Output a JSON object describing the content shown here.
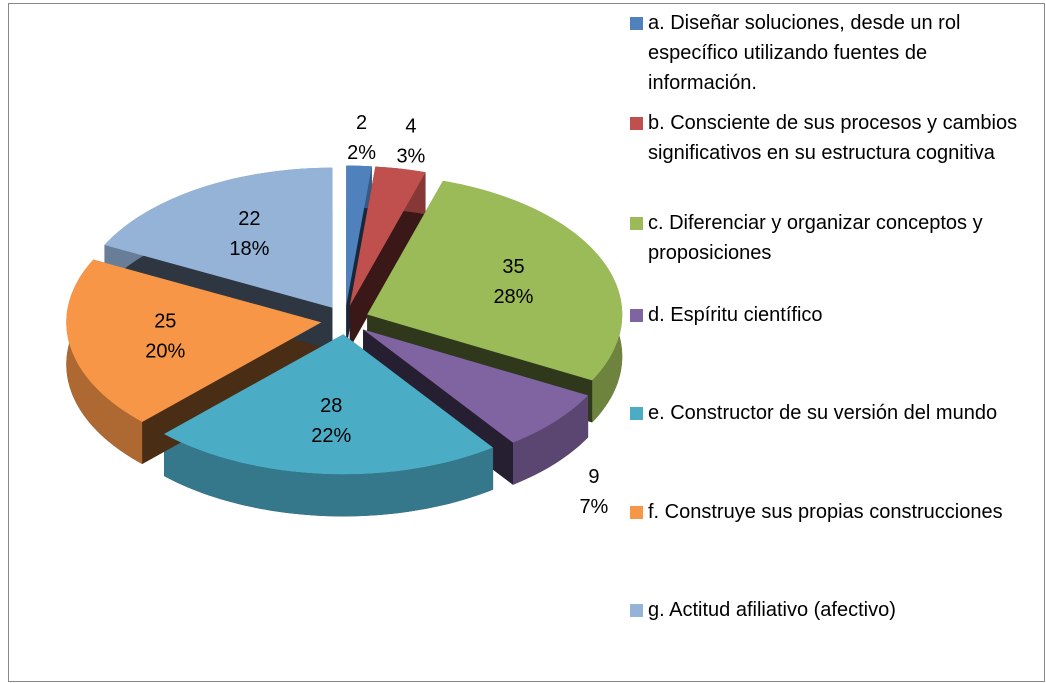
{
  "chart_data": {
    "type": "pie3d",
    "categories": [
      "a. Diseñar soluciones, desde un rol específico utilizando fuentes de información.",
      "b. Consciente de sus procesos y cambios significativos en su estructura cognitiva",
      "c. Diferenciar y organizar conceptos y proposiciones",
      "d. Espíritu científico",
      "e. Constructor de su versión del mundo",
      "f. Construye sus propias construcciones",
      "g. Actitud afiliativo (afectivo)"
    ],
    "values": [
      2,
      4,
      35,
      9,
      28,
      25,
      22
    ],
    "percent_labels": [
      "2%",
      "3%",
      "28%",
      "7%",
      "22%",
      "20%",
      "18%"
    ],
    "colors": [
      "#4f81bd",
      "#c0504d",
      "#9bbb59",
      "#8064a2",
      "#4bacc6",
      "#f79646",
      "#95b3d7"
    ],
    "legend": "right"
  }
}
